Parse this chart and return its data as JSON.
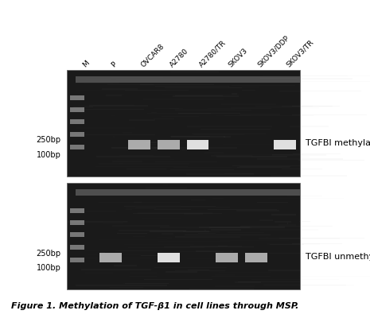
{
  "fig_width": 4.65,
  "fig_height": 4.06,
  "dpi": 100,
  "bg_color": "#ffffff",
  "column_labels": [
    "M",
    "P",
    "OVCAR8",
    "A2780",
    "A2780/TR",
    "SKOV3",
    "SKOV3/DDP",
    "SKOV3/TR"
  ],
  "panel1_label": "TGFBI methylation",
  "panel2_label": "TGFBI unmethylation",
  "bp_labels_top": [
    "250bp",
    "100bp"
  ],
  "bp_labels_bottom": [
    "250bp",
    "100bp"
  ],
  "caption": "Figure 1. Methylation of TGF-β1 in cell lines through MSP.",
  "ladder_color": "#aaaaaa",
  "label_fontsize": 7,
  "caption_fontsize": 8,
  "panel_label_fontsize": 8,
  "col_label_fontsize": 6.5,
  "panel1_bands": [
    {
      "col": 0,
      "bright": false,
      "is_ladder": true
    },
    {
      "col": 1,
      "bright": false,
      "is_ladder": false
    },
    {
      "col": 2,
      "bright": true,
      "is_ladder": false,
      "extra_bright": false
    },
    {
      "col": 3,
      "bright": true,
      "is_ladder": false,
      "extra_bright": false
    },
    {
      "col": 4,
      "bright": true,
      "is_ladder": false,
      "extra_bright": true
    },
    {
      "col": 5,
      "bright": false,
      "is_ladder": false
    },
    {
      "col": 6,
      "bright": false,
      "is_ladder": false
    },
    {
      "col": 7,
      "bright": true,
      "is_ladder": false,
      "extra_bright": true
    }
  ],
  "panel2_bands": [
    {
      "col": 0,
      "bright": false,
      "is_ladder": true
    },
    {
      "col": 1,
      "bright": true,
      "is_ladder": false,
      "extra_bright": false
    },
    {
      "col": 2,
      "bright": false,
      "is_ladder": false
    },
    {
      "col": 3,
      "bright": true,
      "is_ladder": false,
      "extra_bright": true
    },
    {
      "col": 4,
      "bright": false,
      "is_ladder": false
    },
    {
      "col": 5,
      "bright": true,
      "is_ladder": false,
      "extra_bright": false
    },
    {
      "col": 6,
      "bright": true,
      "is_ladder": false,
      "extra_bright": false
    },
    {
      "col": 7,
      "bright": false,
      "is_ladder": false
    }
  ]
}
